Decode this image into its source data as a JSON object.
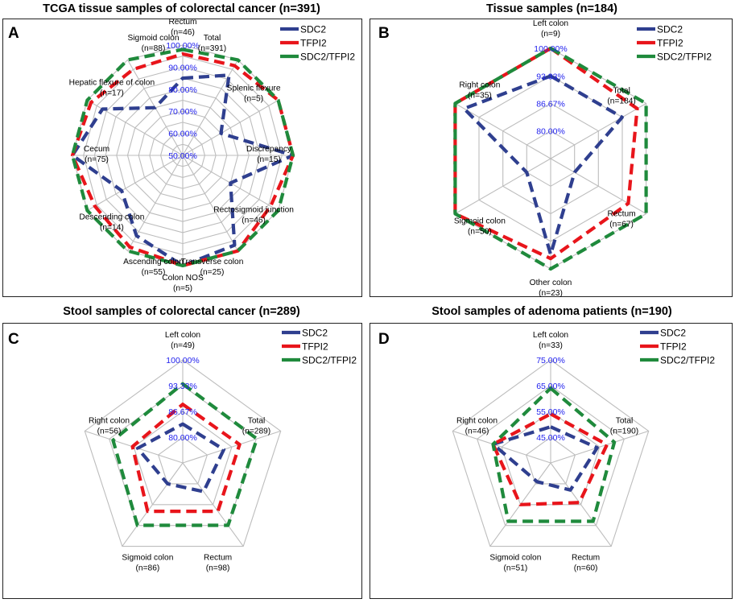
{
  "colors": {
    "SDC2": "#2f3f8f",
    "TFPI2": "#e8151b",
    "SDC2/TFPI2": "#1f8a3c",
    "grid": "#bdbdbd"
  },
  "chart_data": [
    {
      "type": "radar",
      "panel": "A",
      "title": "TCGA tissue samples of colorectal cancer (n=391)",
      "axes": [
        [
          "Rectum",
          "(n=46)"
        ],
        [
          "Total",
          "(n=391)"
        ],
        [
          "Splenic flexure",
          "(n=5)"
        ],
        [
          "Discrepancy",
          "(n=15)"
        ],
        [
          "Rectosigmoid junction",
          "(n=46)"
        ],
        [
          "Transverse colon",
          "(n=25)"
        ],
        [
          "Colon NOS",
          "(n=5)"
        ],
        [
          "Ascending colon",
          "(n=55)"
        ],
        [
          "Descending colon",
          "(n=14)"
        ],
        [
          "Cecum",
          "(n=75)"
        ],
        [
          "Hepatic flexure of colon",
          "(n=17)"
        ],
        [
          "Sigmoid colon",
          "(n=88)"
        ]
      ],
      "rlim": [
        50,
        100
      ],
      "tick_values": [
        50,
        60,
        70,
        80,
        90,
        100
      ],
      "tick_labels": [
        "50.00%",
        "60.00%",
        "70.00%",
        "80.00%",
        "90.00%",
        "100.00%"
      ],
      "series": [
        {
          "name": "SDC2",
          "values": [
            85,
            92,
            70,
            100,
            75,
            97,
            100,
            92,
            82,
            100,
            92,
            75
          ]
        },
        {
          "name": "TFPI2",
          "values": [
            96,
            97,
            100,
            100,
            96,
            100,
            100,
            98,
            96,
            100,
            98,
            95
          ]
        },
        {
          "name": "SDC2/TFPI2",
          "values": [
            98,
            100,
            100,
            100,
            100,
            100,
            100,
            100,
            100,
            100,
            100,
            100
          ]
        }
      ]
    },
    {
      "type": "radar",
      "panel": "B",
      "title": "Tissue samples (n=184)",
      "axes": [
        [
          "Left colon",
          "(n=9)"
        ],
        [
          "Total",
          "(n=184)"
        ],
        [
          "Rectum",
          "(n=67)"
        ],
        [
          "Other colon",
          "(n=23)"
        ],
        [
          "Sigmoid colon",
          "(n=50)"
        ],
        [
          "Right colon",
          "(n=35)"
        ]
      ],
      "rlim": [
        73.33,
        100
      ],
      "tick_values": [
        80,
        86.67,
        93.33,
        100
      ],
      "tick_labels": [
        "80.00%",
        "86.67%",
        "93.33%",
        "100.00%"
      ],
      "series": [
        {
          "name": "SDC2",
          "values": [
            93.3,
            93.3,
            80,
            96.5,
            80,
            97.5
          ]
        },
        {
          "name": "TFPI2",
          "values": [
            100,
            97.5,
            95,
            97.5,
            100,
            100
          ]
        },
        {
          "name": "SDC2/TFPI2",
          "values": [
            100,
            100,
            100,
            100,
            100,
            100
          ]
        }
      ]
    },
    {
      "type": "radar",
      "panel": "C",
      "title": "Stool samples of colorectal cancer (n=289)",
      "axes": [
        [
          "Left colon",
          "(n=49)"
        ],
        [
          "Total",
          "(n=289)"
        ],
        [
          "Rectum",
          "(n=98)"
        ],
        [
          "Sigmoid colon",
          "(n=86)"
        ],
        [
          "Right colon",
          "(n=56)"
        ]
      ],
      "rlim": [
        73.33,
        100
      ],
      "tick_values": [
        80,
        86.67,
        93.33,
        100
      ],
      "tick_labels": [
        "80.00%",
        "86.67%",
        "93.33%",
        "100.00%"
      ],
      "series": [
        {
          "name": "SDC2",
          "values": [
            83.4,
            84.5,
            82.5,
            80,
            85.6
          ]
        },
        {
          "name": "TFPI2",
          "values": [
            88.5,
            88.8,
            88.8,
            88.8,
            87
          ]
        },
        {
          "name": "SDC2/TFPI2",
          "values": [
            93.8,
            93.5,
            93.3,
            93.3,
            92.3
          ]
        }
      ]
    },
    {
      "type": "radar",
      "panel": "D",
      "title": "Stool samples of adenoma patients (n=190)",
      "axes": [
        [
          "Left colon",
          "(n=33)"
        ],
        [
          "Total",
          "(n=190)"
        ],
        [
          "Rectum",
          "(n=60)"
        ],
        [
          "Sigmoid colon",
          "(n=51)"
        ],
        [
          "Right colon",
          "(n=46)"
        ]
      ],
      "rlim": [
        35,
        75
      ],
      "tick_values": [
        45,
        55,
        65,
        75
      ],
      "tick_labels": [
        "45.00%",
        "55.00%",
        "65.00%",
        "75.00%"
      ],
      "series": [
        {
          "name": "SDC2",
          "values": [
            49,
            54,
            48,
            44,
            58.5
          ]
        },
        {
          "name": "TFPI2",
          "values": [
            54,
            58,
            54,
            55,
            58.5
          ]
        },
        {
          "name": "SDC2/TFPI2",
          "values": [
            64,
            61,
            63,
            63,
            58.5
          ]
        }
      ]
    }
  ]
}
